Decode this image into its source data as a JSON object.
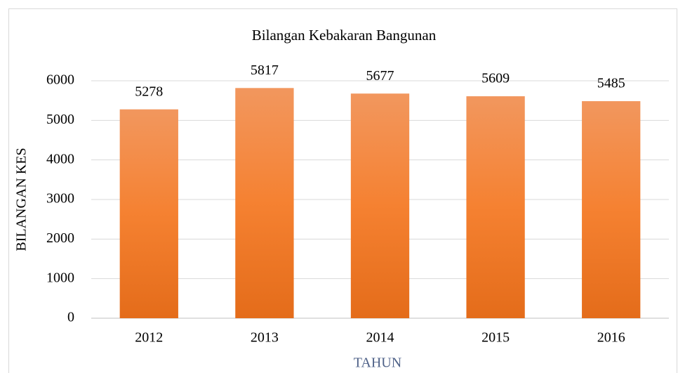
{
  "chart_data": {
    "type": "bar",
    "title": "Bilangan Kebakaran Bangunan",
    "x_label": "TAHUN",
    "y_label": "BILANGAN KES",
    "categories": [
      "2012",
      "2013",
      "2014",
      "2015",
      "2016"
    ],
    "values": [
      5278,
      5817,
      5677,
      5609,
      5485
    ],
    "color": "#ed7d31",
    "ylim": [
      0,
      6000
    ],
    "yticks": [
      0,
      1000,
      2000,
      3000,
      4000,
      5000,
      6000
    ],
    "grid": true
  }
}
